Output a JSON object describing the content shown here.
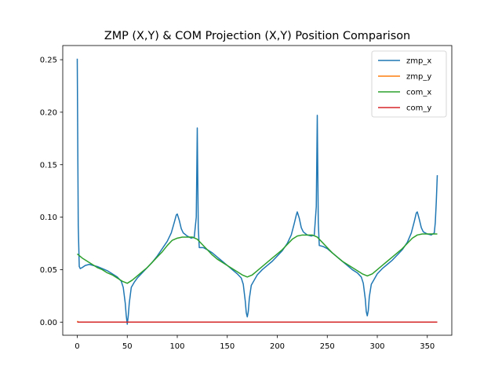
{
  "chart_data": {
    "type": "line",
    "title": "ZMP (X,Y) & COM Projection (X,Y) Position Comparison",
    "xlabel": "",
    "ylabel": "",
    "xlim": [
      -14.5,
      374.5
    ],
    "ylim": [
      -0.0125,
      0.2635
    ],
    "xticks": [
      0,
      50,
      100,
      150,
      200,
      250,
      300,
      350
    ],
    "xtick_labels": [
      "0",
      "50",
      "100",
      "150",
      "200",
      "250",
      "300",
      "350"
    ],
    "yticks": [
      0.0,
      0.05,
      0.1,
      0.15,
      0.2,
      0.25
    ],
    "ytick_labels": [
      "0.00",
      "0.05",
      "0.10",
      "0.15",
      "0.20",
      "0.25"
    ],
    "grid": false,
    "legend_position": "upper right",
    "series": [
      {
        "name": "zmp_x",
        "color": "#1f77b4",
        "points": [
          [
            0,
            0.251
          ],
          [
            1,
            0.092
          ],
          [
            2,
            0.053
          ],
          [
            3,
            0.051
          ],
          [
            5,
            0.052
          ],
          [
            8,
            0.054
          ],
          [
            12,
            0.055
          ],
          [
            16,
            0.054
          ],
          [
            20,
            0.053
          ],
          [
            25,
            0.051
          ],
          [
            30,
            0.049
          ],
          [
            35,
            0.046
          ],
          [
            40,
            0.043
          ],
          [
            44,
            0.039
          ],
          [
            46,
            0.033
          ],
          [
            48,
            0.018
          ],
          [
            49,
            0.006
          ],
          [
            50,
            -0.002
          ],
          [
            51,
            0.006
          ],
          [
            52,
            0.018
          ],
          [
            54,
            0.033
          ],
          [
            57,
            0.038
          ],
          [
            60,
            0.042
          ],
          [
            65,
            0.047
          ],
          [
            70,
            0.052
          ],
          [
            75,
            0.057
          ],
          [
            80,
            0.063
          ],
          [
            85,
            0.07
          ],
          [
            90,
            0.077
          ],
          [
            94,
            0.085
          ],
          [
            97,
            0.095
          ],
          [
            99,
            0.102
          ],
          [
            100,
            0.103
          ],
          [
            102,
            0.097
          ],
          [
            104,
            0.089
          ],
          [
            106,
            0.085
          ],
          [
            110,
            0.082
          ],
          [
            114,
            0.08
          ],
          [
            117,
            0.081
          ],
          [
            119,
            0.1
          ],
          [
            120,
            0.185
          ],
          [
            121,
            0.09
          ],
          [
            122,
            0.071
          ],
          [
            126,
            0.071
          ],
          [
            130,
            0.069
          ],
          [
            135,
            0.066
          ],
          [
            140,
            0.062
          ],
          [
            145,
            0.058
          ],
          [
            150,
            0.054
          ],
          [
            155,
            0.05
          ],
          [
            160,
            0.046
          ],
          [
            164,
            0.042
          ],
          [
            166,
            0.036
          ],
          [
            168,
            0.02
          ],
          [
            169,
            0.009
          ],
          [
            170,
            0.005
          ],
          [
            171,
            0.01
          ],
          [
            172,
            0.022
          ],
          [
            174,
            0.035
          ],
          [
            177,
            0.04
          ],
          [
            180,
            0.045
          ],
          [
            185,
            0.05
          ],
          [
            190,
            0.054
          ],
          [
            195,
            0.058
          ],
          [
            200,
            0.063
          ],
          [
            205,
            0.068
          ],
          [
            210,
            0.075
          ],
          [
            214,
            0.083
          ],
          [
            217,
            0.094
          ],
          [
            219,
            0.102
          ],
          [
            220,
            0.105
          ],
          [
            222,
            0.099
          ],
          [
            224,
            0.09
          ],
          [
            226,
            0.086
          ],
          [
            230,
            0.083
          ],
          [
            234,
            0.082
          ],
          [
            237,
            0.083
          ],
          [
            239,
            0.11
          ],
          [
            240,
            0.197
          ],
          [
            241,
            0.095
          ],
          [
            242,
            0.073
          ],
          [
            246,
            0.072
          ],
          [
            250,
            0.07
          ],
          [
            255,
            0.066
          ],
          [
            260,
            0.062
          ],
          [
            265,
            0.058
          ],
          [
            270,
            0.054
          ],
          [
            275,
            0.05
          ],
          [
            280,
            0.047
          ],
          [
            284,
            0.043
          ],
          [
            286,
            0.037
          ],
          [
            288,
            0.022
          ],
          [
            289,
            0.01
          ],
          [
            290,
            0.006
          ],
          [
            291,
            0.011
          ],
          [
            292,
            0.024
          ],
          [
            294,
            0.036
          ],
          [
            297,
            0.041
          ],
          [
            300,
            0.046
          ],
          [
            305,
            0.051
          ],
          [
            310,
            0.055
          ],
          [
            315,
            0.059
          ],
          [
            320,
            0.064
          ],
          [
            325,
            0.069
          ],
          [
            330,
            0.076
          ],
          [
            334,
            0.085
          ],
          [
            337,
            0.096
          ],
          [
            339,
            0.104
          ],
          [
            340,
            0.105
          ],
          [
            342,
            0.098
          ],
          [
            344,
            0.09
          ],
          [
            346,
            0.086
          ],
          [
            350,
            0.084
          ],
          [
            354,
            0.083
          ],
          [
            357,
            0.085
          ],
          [
            358,
            0.095
          ],
          [
            359,
            0.115
          ],
          [
            360,
            0.14
          ]
        ]
      },
      {
        "name": "zmp_y",
        "color": "#ff7f0e",
        "points": [
          [
            0,
            0.001
          ],
          [
            1,
            0.0
          ],
          [
            360,
            0.0
          ]
        ]
      },
      {
        "name": "com_x",
        "color": "#2ca02c",
        "points": [
          [
            0,
            0.065
          ],
          [
            5,
            0.061
          ],
          [
            10,
            0.058
          ],
          [
            15,
            0.055
          ],
          [
            20,
            0.052
          ],
          [
            25,
            0.05
          ],
          [
            30,
            0.047
          ],
          [
            35,
            0.045
          ],
          [
            40,
            0.042
          ],
          [
            45,
            0.039
          ],
          [
            50,
            0.037
          ],
          [
            55,
            0.04
          ],
          [
            60,
            0.044
          ],
          [
            65,
            0.048
          ],
          [
            70,
            0.052
          ],
          [
            75,
            0.057
          ],
          [
            80,
            0.062
          ],
          [
            85,
            0.067
          ],
          [
            90,
            0.073
          ],
          [
            95,
            0.078
          ],
          [
            100,
            0.08
          ],
          [
            105,
            0.081
          ],
          [
            110,
            0.081
          ],
          [
            115,
            0.081
          ],
          [
            120,
            0.079
          ],
          [
            125,
            0.074
          ],
          [
            130,
            0.069
          ],
          [
            135,
            0.064
          ],
          [
            140,
            0.06
          ],
          [
            145,
            0.057
          ],
          [
            150,
            0.054
          ],
          [
            155,
            0.051
          ],
          [
            160,
            0.048
          ],
          [
            165,
            0.045
          ],
          [
            170,
            0.043
          ],
          [
            175,
            0.045
          ],
          [
            180,
            0.049
          ],
          [
            185,
            0.053
          ],
          [
            190,
            0.057
          ],
          [
            195,
            0.061
          ],
          [
            200,
            0.065
          ],
          [
            205,
            0.069
          ],
          [
            210,
            0.074
          ],
          [
            215,
            0.079
          ],
          [
            220,
            0.082
          ],
          [
            225,
            0.083
          ],
          [
            230,
            0.083
          ],
          [
            235,
            0.083
          ],
          [
            240,
            0.081
          ],
          [
            245,
            0.076
          ],
          [
            250,
            0.071
          ],
          [
            255,
            0.066
          ],
          [
            260,
            0.062
          ],
          [
            265,
            0.058
          ],
          [
            270,
            0.055
          ],
          [
            275,
            0.052
          ],
          [
            280,
            0.049
          ],
          [
            285,
            0.046
          ],
          [
            290,
            0.044
          ],
          [
            295,
            0.046
          ],
          [
            300,
            0.05
          ],
          [
            305,
            0.054
          ],
          [
            310,
            0.058
          ],
          [
            315,
            0.062
          ],
          [
            320,
            0.066
          ],
          [
            325,
            0.07
          ],
          [
            330,
            0.075
          ],
          [
            335,
            0.08
          ],
          [
            340,
            0.083
          ],
          [
            345,
            0.084
          ],
          [
            350,
            0.084
          ],
          [
            355,
            0.084
          ],
          [
            360,
            0.084
          ]
        ]
      },
      {
        "name": "com_y",
        "color": "#d62728",
        "points": [
          [
            0,
            0.0
          ],
          [
            360,
            0.0
          ]
        ]
      }
    ]
  }
}
